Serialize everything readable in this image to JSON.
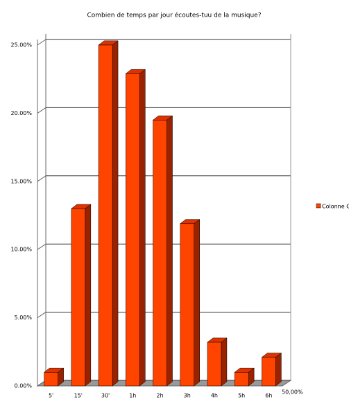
{
  "chart_data": {
    "type": "bar",
    "title": "Combien de temps par jour écoutes-tuu de la musique?",
    "categories": [
      "5'",
      "15'",
      "30'",
      "1h",
      "2h",
      "3h",
      "4h",
      "5h",
      "6h"
    ],
    "series": [
      {
        "name": "Colonne G",
        "color": "#ff4400",
        "values": [
          1.0,
          13.0,
          25.0,
          22.9,
          19.5,
          11.9,
          3.2,
          1.0,
          2.1
        ]
      }
    ],
    "ylim": [
      0,
      25
    ],
    "yticks": [
      {
        "value": 0,
        "label": "0.00%"
      },
      {
        "value": 5,
        "label": "5.00%"
      },
      {
        "value": 10,
        "label": "10.00%"
      },
      {
        "value": 15,
        "label": "15.00%"
      },
      {
        "value": 20,
        "label": "20.00%"
      },
      {
        "value": 25,
        "label": "25.00%"
      }
    ],
    "annotation": "50,00%",
    "grid": true,
    "legend": "right"
  }
}
